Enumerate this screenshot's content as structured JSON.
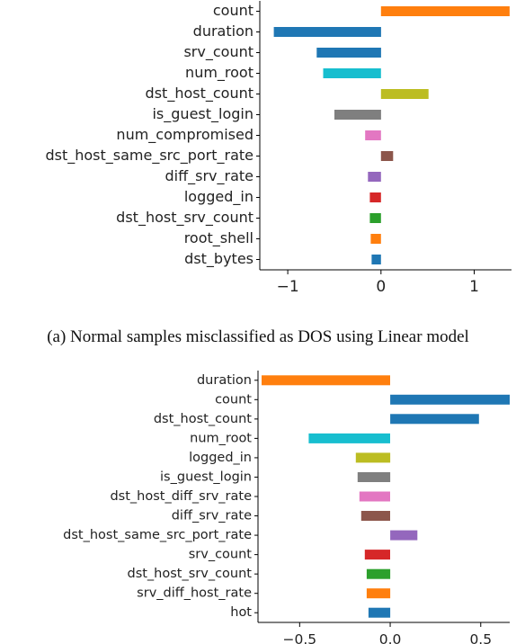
{
  "chart_data": [
    {
      "type": "bar",
      "orientation": "horizontal",
      "caption": "(a) Normal samples misclassified as DOS using Linear model",
      "title": "",
      "xlabel": "",
      "ylabel": "",
      "xlim": [
        -1.3,
        1.4
      ],
      "xticks": [
        "−1",
        "0",
        "1"
      ],
      "grid": false,
      "categories": [
        "count",
        "duration",
        "srv_count",
        "num_root",
        "dst_host_count",
        "is_guest_login",
        "num_compromised",
        "dst_host_same_src_port_rate",
        "diff_srv_rate",
        "logged_in",
        "dst_host_srv_count",
        "root_shell",
        "dst_bytes"
      ],
      "values": [
        1.38,
        -1.15,
        -0.69,
        -0.62,
        0.51,
        -0.5,
        -0.17,
        0.13,
        -0.14,
        -0.12,
        -0.12,
        -0.11,
        -0.1
      ],
      "colors": [
        "#ff7f0e",
        "#1f77b4",
        "#1f77b4",
        "#17becf",
        "#bcbd22",
        "#7f7f7f",
        "#e377c2",
        "#8c564b",
        "#9467bd",
        "#d62728",
        "#2ca02c",
        "#ff7f0e",
        "#1f77b4"
      ]
    },
    {
      "type": "bar",
      "orientation": "horizontal",
      "caption": "",
      "title": "",
      "xlabel": "",
      "ylabel": "",
      "xlim": [
        -0.73,
        0.66
      ],
      "xticks": [
        "−0.5",
        "0.0",
        "0.5"
      ],
      "grid": false,
      "categories": [
        "duration",
        "count",
        "dst_host_count",
        "num_root",
        "logged_in",
        "is_guest_login",
        "dst_host_diff_srv_rate",
        "diff_srv_rate",
        "dst_host_same_src_port_rate",
        "srv_count",
        "dst_host_srv_count",
        "srv_diff_host_rate",
        "hot"
      ],
      "values": [
        -0.71,
        0.66,
        0.49,
        -0.45,
        -0.19,
        -0.18,
        -0.17,
        -0.16,
        0.15,
        -0.14,
        -0.13,
        -0.13,
        -0.12
      ],
      "colors": [
        "#ff7f0e",
        "#1f77b4",
        "#1f77b4",
        "#17becf",
        "#bcbd22",
        "#7f7f7f",
        "#e377c2",
        "#8c564b",
        "#9467bd",
        "#d62728",
        "#2ca02c",
        "#ff7f0e",
        "#1f77b4"
      ]
    }
  ]
}
